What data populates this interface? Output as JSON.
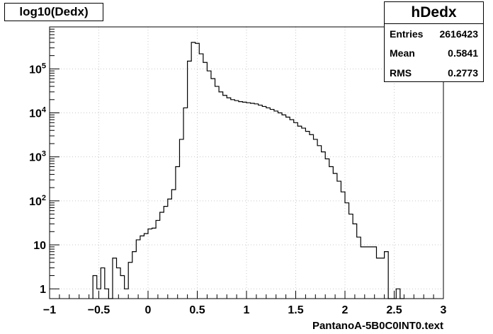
{
  "title": "log10(Dedx)",
  "stats": {
    "name": "hDedx",
    "rows": [
      {
        "label": "Entries",
        "value": "2616423"
      },
      {
        "label": "Mean",
        "value": "0.5841"
      },
      {
        "label": "RMS",
        "value": "0.2773"
      }
    ]
  },
  "chart_data": {
    "type": "bar",
    "title": "log10(Dedx)",
    "xlabel": "PantanoA-5B0C0INT0.text",
    "ylabel": "",
    "xlim": [
      -1,
      3
    ],
    "ylim": [
      0.6,
      900000
    ],
    "yscale": "log",
    "grid": true,
    "bin_width": 0.04,
    "x_ticks": [
      {
        "v": -1,
        "label": "−1"
      },
      {
        "v": -0.5,
        "label": "−0.5"
      },
      {
        "v": 0,
        "label": "0"
      },
      {
        "v": 0.5,
        "label": "0.5"
      },
      {
        "v": 1,
        "label": "1"
      },
      {
        "v": 1.5,
        "label": "1.5"
      },
      {
        "v": 2,
        "label": "2"
      },
      {
        "v": 2.5,
        "label": "2.5"
      },
      {
        "v": 3,
        "label": "3"
      }
    ],
    "y_ticks": [
      {
        "v": 1,
        "label": "1"
      },
      {
        "v": 10,
        "label": "10"
      },
      {
        "v": 100,
        "label": "10^2"
      },
      {
        "v": 1000,
        "label": "10^3"
      },
      {
        "v": 10000,
        "label": "10^4"
      },
      {
        "v": 100000,
        "label": "10^5"
      }
    ],
    "bins": [
      [
        -0.56,
        2
      ],
      [
        -0.52,
        1
      ],
      [
        -0.48,
        3
      ],
      [
        -0.44,
        1
      ],
      [
        -0.4,
        0.5
      ],
      [
        -0.36,
        5
      ],
      [
        -0.32,
        3
      ],
      [
        -0.28,
        2
      ],
      [
        -0.24,
        1
      ],
      [
        -0.2,
        4
      ],
      [
        -0.16,
        7
      ],
      [
        -0.12,
        13
      ],
      [
        -0.08,
        16
      ],
      [
        -0.04,
        18
      ],
      [
        0.0,
        23
      ],
      [
        0.04,
        24
      ],
      [
        0.08,
        36
      ],
      [
        0.12,
        55
      ],
      [
        0.16,
        75
      ],
      [
        0.2,
        110
      ],
      [
        0.24,
        180
      ],
      [
        0.28,
        600
      ],
      [
        0.32,
        2500
      ],
      [
        0.36,
        13000
      ],
      [
        0.4,
        150000
      ],
      [
        0.44,
        400000
      ],
      [
        0.48,
        380000
      ],
      [
        0.52,
        220000
      ],
      [
        0.56,
        140000
      ],
      [
        0.6,
        90000
      ],
      [
        0.64,
        60000
      ],
      [
        0.68,
        40000
      ],
      [
        0.72,
        30000
      ],
      [
        0.76,
        25000
      ],
      [
        0.8,
        22000
      ],
      [
        0.84,
        20000
      ],
      [
        0.88,
        19000
      ],
      [
        0.92,
        18000
      ],
      [
        0.96,
        17500
      ],
      [
        1.0,
        17000
      ],
      [
        1.04,
        16500
      ],
      [
        1.08,
        16000
      ],
      [
        1.12,
        15000
      ],
      [
        1.16,
        14000
      ],
      [
        1.2,
        13000
      ],
      [
        1.24,
        12000
      ],
      [
        1.28,
        11000
      ],
      [
        1.32,
        10000
      ],
      [
        1.36,
        9000
      ],
      [
        1.4,
        8000
      ],
      [
        1.44,
        7000
      ],
      [
        1.48,
        6000
      ],
      [
        1.52,
        5000
      ],
      [
        1.56,
        4500
      ],
      [
        1.6,
        3800
      ],
      [
        1.64,
        3200
      ],
      [
        1.68,
        2500
      ],
      [
        1.72,
        1800
      ],
      [
        1.76,
        1300
      ],
      [
        1.8,
        900
      ],
      [
        1.84,
        600
      ],
      [
        1.88,
        420
      ],
      [
        1.92,
        280
      ],
      [
        1.96,
        160
      ],
      [
        2.0,
        90
      ],
      [
        2.04,
        50
      ],
      [
        2.08,
        30
      ],
      [
        2.12,
        15
      ],
      [
        2.16,
        9
      ],
      [
        2.2,
        9
      ],
      [
        2.24,
        9
      ],
      [
        2.28,
        9
      ],
      [
        2.32,
        5
      ],
      [
        2.36,
        5
      ],
      [
        2.4,
        7
      ],
      [
        2.44,
        0.5
      ],
      [
        2.48,
        0.5
      ],
      [
        2.52,
        1
      ],
      [
        2.56,
        0.5
      ]
    ]
  }
}
